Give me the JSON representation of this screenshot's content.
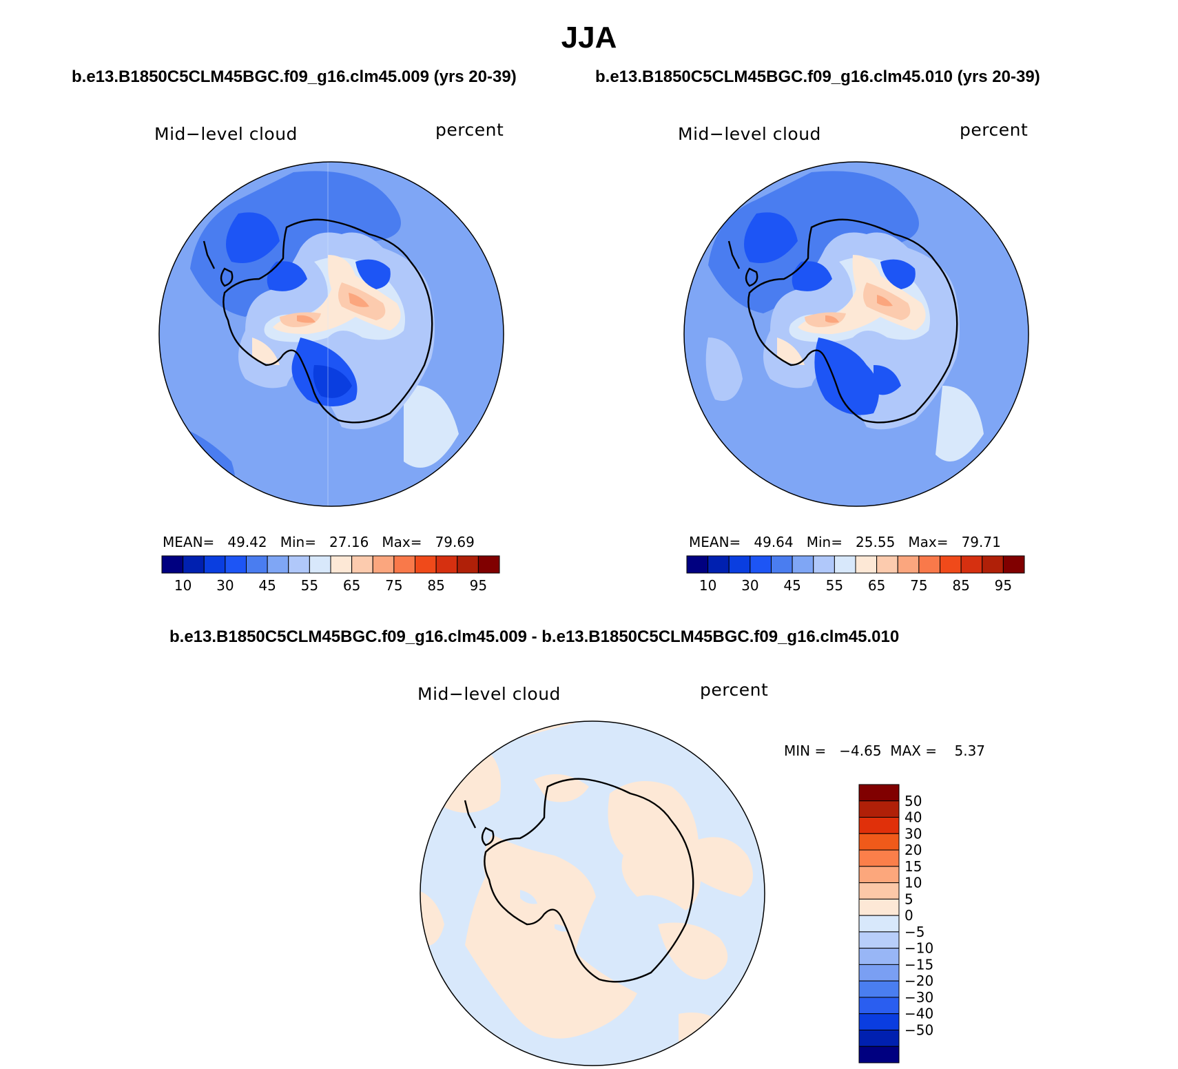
{
  "season": "JJA",
  "panels": [
    {
      "case_title": "b.e13.B1850C5CLM45BGC.f09_g16.clm45.009 (yrs 20-39)",
      "variable": "Mid−level cloud",
      "units": "percent",
      "stats": {
        "mean_label": "MEAN=",
        "mean": "49.42",
        "min_label": "Min=",
        "min": "27.16",
        "max_label": "Max=",
        "max": "79.69"
      }
    },
    {
      "case_title": "b.e13.B1850C5CLM45BGC.f09_g16.clm45.010 (yrs 20-39)",
      "variable": "Mid−level cloud",
      "units": "percent",
      "stats": {
        "mean_label": "MEAN=",
        "mean": "49.64",
        "min_label": "Min=",
        "min": "25.55",
        "max_label": "Max=",
        "max": "79.71"
      }
    }
  ],
  "diff_panel": {
    "case_title": "b.e13.B1850C5CLM45BGC.f09_g16.clm45.009 - b.e13.B1850C5CLM45BGC.f09_g16.clm45.010",
    "variable": "Mid−level cloud",
    "units": "percent",
    "stats_text": "MIN =   −4.65  MAX =    5.37"
  },
  "colorbar_abs": {
    "colors": [
      "#000080",
      "#0020b0",
      "#0a3ee0",
      "#1d55f5",
      "#4a7df0",
      "#7fa6f5",
      "#b0c8fa",
      "#d8e8fb",
      "#fde8d6",
      "#fccbae",
      "#fba67e",
      "#f9794a",
      "#f04a1a",
      "#d63010",
      "#b02008",
      "#800000"
    ],
    "labels": [
      "10",
      "30",
      "45",
      "55",
      "65",
      "75",
      "85",
      "95"
    ]
  },
  "colorbar_diff": {
    "colors": [
      "#800000",
      "#b02008",
      "#e0300a",
      "#f05a1a",
      "#fb7f4a",
      "#fca77c",
      "#fcc8a8",
      "#fde8d6",
      "#d8e8fb",
      "#b8cefa",
      "#98b6f6",
      "#7a9ff3",
      "#4a7ef0",
      "#2a5ef0",
      "#0a3de0",
      "#0020b0",
      "#000080"
    ],
    "labels": [
      "50",
      "40",
      "30",
      "20",
      "15",
      "10",
      "5",
      "0",
      "−5",
      "−10",
      "−15",
      "−20",
      "−30",
      "−40",
      "−50"
    ]
  }
}
